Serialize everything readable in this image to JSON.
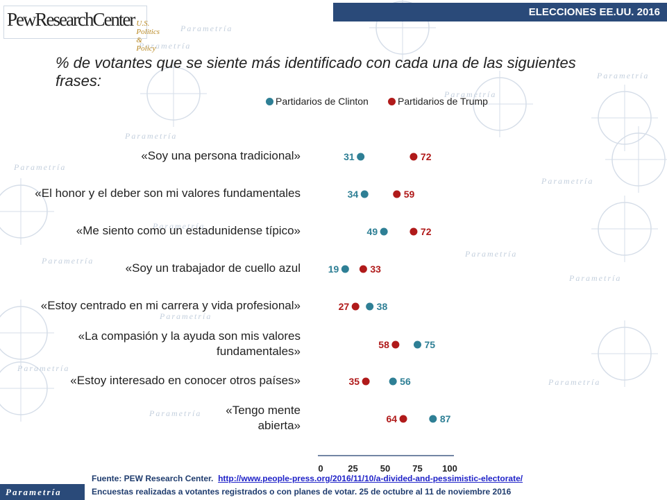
{
  "header": {
    "logo_main": "PewResearchCenter",
    "logo_sub": "U.S. Politics & Policy",
    "banner": "ELECCIONES EE.UU. 2016"
  },
  "watermark": "Parametría",
  "chart_data": {
    "type": "scatter",
    "title": "% de votantes que se siente más identificado con cada una de las siguientes frases:",
    "categories": [
      "«Soy una persona tradicional»",
      "«El honor y el deber son mi valores fundamentales",
      "«Me siento como un estadunidense típico»",
      "«Soy un trabajador de cuello azul",
      "«Estoy centrado en mi carrera y vida profesional»",
      "«La compasión y la ayuda son mis valores fundamentales»",
      "«Estoy interesado en conocer otros países»",
      "«Tengo mente abierta»"
    ],
    "label_lines": [
      [
        "«Soy una persona tradicional»"
      ],
      [
        "«El honor y el deber son mi valores fundamentales"
      ],
      [
        "«Me siento como un estadunidense típico»"
      ],
      [
        "«Soy un trabajador de cuello azul"
      ],
      [
        "«Estoy centrado en mi carrera y vida profesional»"
      ],
      [
        "«La compasión y la ayuda son mis valores",
        "fundamentales»"
      ],
      [
        "«Estoy interesado en conocer otros países»"
      ],
      [
        "«Tengo mente",
        "abierta»"
      ]
    ],
    "series": [
      {
        "name": "Partidarios de Clinton",
        "color": "#2e7f95",
        "values": [
          31,
          34,
          49,
          19,
          38,
          75,
          56,
          87
        ]
      },
      {
        "name": "Partidarios de Trump",
        "color": "#b01a1a",
        "values": [
          72,
          59,
          72,
          33,
          27,
          58,
          35,
          64
        ]
      }
    ],
    "xlim": [
      0,
      100
    ],
    "xticks": [
      0,
      25,
      50,
      75,
      100
    ],
    "legend_position": "top",
    "grid": false
  },
  "footer": {
    "source_label": "Fuente: PEW Research Center.",
    "source_link": "http://www.people-press.org/2016/11/10/a-divided-and-pessimistic-electorate/",
    "note": "Encuestas realizadas a votantes registrados o con planes de votar. 25 de octubre al 11 de noviembre 2016",
    "brand": "Parametría"
  }
}
